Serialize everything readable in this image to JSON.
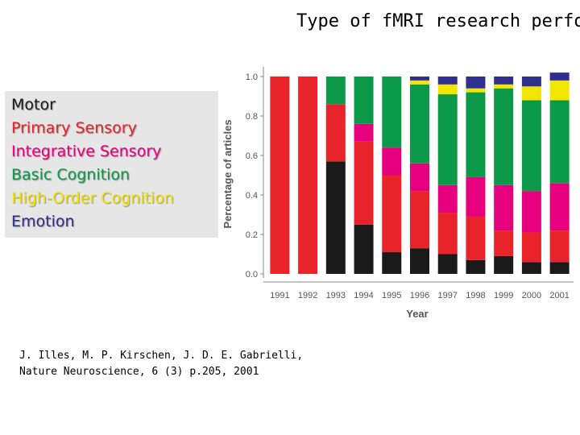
{
  "slide": {
    "title": "Type of fMRI research perfor",
    "citation_line1": "J. Illes, M. P. Kirschen, J. D. E. Gabrielli,",
    "citation_line2": "Nature Neuroscience, 6 (3) p.205, 2001"
  },
  "legend": [
    {
      "label": "Motor",
      "color": "#1a1a1a"
    },
    {
      "label": "Primary Sensory",
      "color": "#e8232a"
    },
    {
      "label": "Integrative Sensory",
      "color": "#e6007e"
    },
    {
      "label": "Basic Cognition",
      "color": "#0c9a4a"
    },
    {
      "label": "High-Order Cognition",
      "color": "#f2e500"
    },
    {
      "label": "Emotion",
      "color": "#2e2f8f"
    }
  ],
  "chart_data": {
    "type": "bar",
    "stacked": true,
    "title": "",
    "xlabel": "Year",
    "ylabel": "Percentage of articles",
    "ylim": [
      0,
      1.0
    ],
    "yticks": [
      "0.0",
      "0.2",
      "0.4",
      "0.6",
      "0.8",
      "1.0"
    ],
    "categories": [
      "1991",
      "1992",
      "1993",
      "1994",
      "1995",
      "1996",
      "1997",
      "1998",
      "1999",
      "2000",
      "2001"
    ],
    "series": [
      {
        "color": "#1a1a1a",
        "values": [
          0,
          0,
          0.57,
          0.25,
          0.11,
          0.13,
          0.1,
          0.07,
          0.09,
          0.06,
          0.06
        ]
      },
      {
        "color": "#e8232a",
        "values": [
          1.0,
          1.0,
          0.29,
          0.42,
          0.39,
          0.29,
          0.21,
          0.22,
          0.13,
          0.15,
          0.16
        ]
      },
      {
        "color": "#e6007e",
        "values": [
          0,
          0,
          0,
          0.09,
          0.14,
          0.14,
          0.14,
          0.2,
          0.23,
          0.21,
          0.24
        ]
      },
      {
        "color": "#0c9a4a",
        "values": [
          0,
          0,
          0.14,
          0.24,
          0.36,
          0.4,
          0.46,
          0.43,
          0.49,
          0.46,
          0.42
        ]
      },
      {
        "color": "#f2e500",
        "values": [
          0,
          0,
          0,
          0,
          0,
          0.02,
          0.05,
          0.02,
          0.02,
          0.07,
          0.1
        ]
      },
      {
        "color": "#2e2f8f",
        "values": [
          0,
          0,
          0,
          0,
          0,
          0.02,
          0.04,
          0.06,
          0.04,
          0.05,
          0.04
        ]
      }
    ]
  }
}
